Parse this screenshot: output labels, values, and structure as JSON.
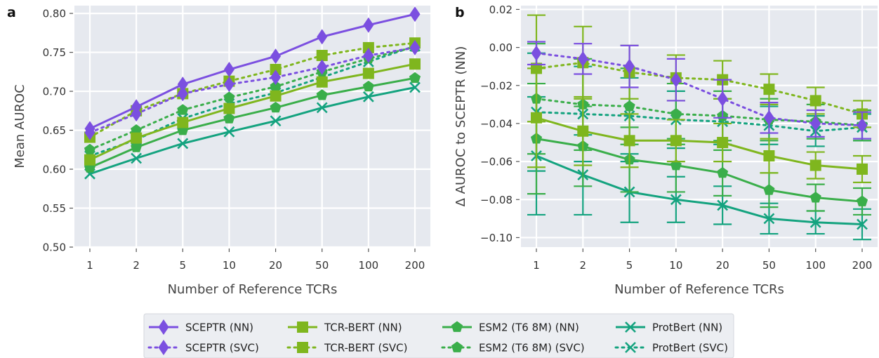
{
  "panels": [
    {
      "label": "a"
    },
    {
      "label": "b"
    }
  ],
  "legend": {
    "entries": [
      {
        "name": "SCEPTR (NN)",
        "color": "#7b4fe0",
        "marker": "diamond",
        "dash": "solid"
      },
      {
        "name": "SCEPTR (SVC)",
        "color": "#7b4fe0",
        "marker": "diamond",
        "dash": "dotted"
      },
      {
        "name": "TCR-BERT (NN)",
        "color": "#7fb61e",
        "marker": "square",
        "dash": "solid"
      },
      {
        "name": "TCR-BERT (SVC)",
        "color": "#7fb61e",
        "marker": "square",
        "dash": "dotted"
      },
      {
        "name": "ESM2 (T6 8M) (NN)",
        "color": "#3aae4a",
        "marker": "pentagon",
        "dash": "solid"
      },
      {
        "name": "ESM2 (T6 8M) (SVC)",
        "color": "#3aae4a",
        "marker": "pentagon",
        "dash": "dotted"
      },
      {
        "name": "ProtBert (NN)",
        "color": "#14a37f",
        "marker": "x",
        "dash": "solid"
      },
      {
        "name": "ProtBert (SVC)",
        "color": "#14a37f",
        "marker": "x",
        "dash": "dotted"
      }
    ]
  },
  "chart_data": [
    {
      "type": "line",
      "panel": "a",
      "xlabel": "Number of Reference TCRs",
      "ylabel": "Mean AUROC",
      "categories": [
        "1",
        "2",
        "5",
        "10",
        "20",
        "50",
        "100",
        "200"
      ],
      "ylim": [
        0.5,
        0.81
      ],
      "yticks": [
        "0.50",
        "0.55",
        "0.60",
        "0.65",
        "0.70",
        "0.75",
        "0.80"
      ],
      "grid": true,
      "series": [
        {
          "name": "ProtBert (SVC)",
          "values": [
            0.617,
            0.638,
            0.665,
            0.684,
            0.698,
            0.718,
            0.738,
            0.758
          ]
        },
        {
          "name": "ProtBert (NN)",
          "values": [
            0.594,
            0.614,
            0.633,
            0.648,
            0.662,
            0.679,
            0.693,
            0.705
          ]
        },
        {
          "name": "ESM2 (T6 8M) (SVC)",
          "values": [
            0.625,
            0.65,
            0.676,
            0.692,
            0.706,
            0.725,
            0.742,
            0.757
          ]
        },
        {
          "name": "ESM2 (T6 8M) (NN)",
          "values": [
            0.602,
            0.628,
            0.65,
            0.665,
            0.679,
            0.695,
            0.706,
            0.717
          ]
        },
        {
          "name": "TCR-BERT (SVC)",
          "values": [
            0.641,
            0.675,
            0.697,
            0.713,
            0.728,
            0.746,
            0.756,
            0.762
          ]
        },
        {
          "name": "TCR-BERT (NN)",
          "values": [
            0.612,
            0.64,
            0.66,
            0.678,
            0.694,
            0.712,
            0.723,
            0.735
          ]
        },
        {
          "name": "SCEPTR (SVC)",
          "values": [
            0.647,
            0.671,
            0.697,
            0.709,
            0.718,
            0.731,
            0.746,
            0.756
          ]
        },
        {
          "name": "SCEPTR (NN)",
          "values": [
            0.652,
            0.68,
            0.709,
            0.728,
            0.745,
            0.77,
            0.785,
            0.799
          ]
        }
      ]
    },
    {
      "type": "line",
      "panel": "b",
      "xlabel": "Number of Reference TCRs",
      "ylabel": "Δ AUROC to SCEPTR (NN)",
      "categories": [
        "1",
        "2",
        "5",
        "10",
        "20",
        "50",
        "100",
        "200"
      ],
      "ylim": [
        -0.105,
        0.022
      ],
      "yticks": [
        "0.02",
        "0.00",
        "−0.02",
        "−0.04",
        "−0.06",
        "−0.08",
        "−0.10"
      ],
      "grid": true,
      "series": [
        {
          "name": "ProtBert (SVC)",
          "values": [
            -0.034,
            -0.035,
            -0.036,
            -0.038,
            -0.039,
            -0.041,
            -0.044,
            -0.042
          ],
          "err": [
            0.031,
            0.025,
            0.02,
            0.015,
            0.012,
            0.01,
            0.008,
            0.007
          ]
        },
        {
          "name": "ProtBert (NN)",
          "values": [
            -0.057,
            -0.067,
            -0.076,
            -0.08,
            -0.083,
            -0.09,
            -0.092,
            -0.093
          ],
          "err": [
            0.031,
            0.021,
            0.016,
            0.012,
            0.01,
            0.008,
            0.006,
            0.008
          ]
        },
        {
          "name": "ESM2 (T6 8M) (SVC)",
          "values": [
            -0.027,
            -0.03,
            -0.031,
            -0.035,
            -0.036,
            -0.038,
            -0.039,
            -0.041
          ],
          "err": [
            0.029,
            0.024,
            0.02,
            0.016,
            0.013,
            0.011,
            0.009,
            0.008
          ]
        },
        {
          "name": "ESM2 (T6 8M) (NN)",
          "values": [
            -0.048,
            -0.052,
            -0.059,
            -0.062,
            -0.066,
            -0.075,
            -0.079,
            -0.081
          ],
          "err": [
            0.029,
            0.021,
            0.017,
            0.014,
            0.012,
            0.009,
            0.007,
            0.007
          ]
        },
        {
          "name": "TCR-BERT (SVC)",
          "values": [
            -0.011,
            -0.008,
            -0.013,
            -0.016,
            -0.017,
            -0.022,
            -0.028,
            -0.035
          ],
          "err": [
            0.028,
            0.019,
            0.014,
            0.012,
            0.01,
            0.008,
            0.007,
            0.007
          ]
        },
        {
          "name": "TCR-BERT (NN)",
          "values": [
            -0.037,
            -0.044,
            -0.049,
            -0.049,
            -0.05,
            -0.057,
            -0.062,
            -0.064
          ],
          "err": [
            0.026,
            0.018,
            0.014,
            0.011,
            0.01,
            0.009,
            0.007,
            0.007
          ]
        },
        {
          "name": "SCEPTR (SVC)",
          "values": [
            -0.003,
            -0.006,
            -0.01,
            -0.017,
            -0.027,
            -0.037,
            -0.04,
            -0.041
          ],
          "err": [
            0.006,
            0.008,
            0.011,
            0.011,
            0.01,
            0.008,
            0.007,
            0.007
          ]
        }
      ]
    }
  ]
}
